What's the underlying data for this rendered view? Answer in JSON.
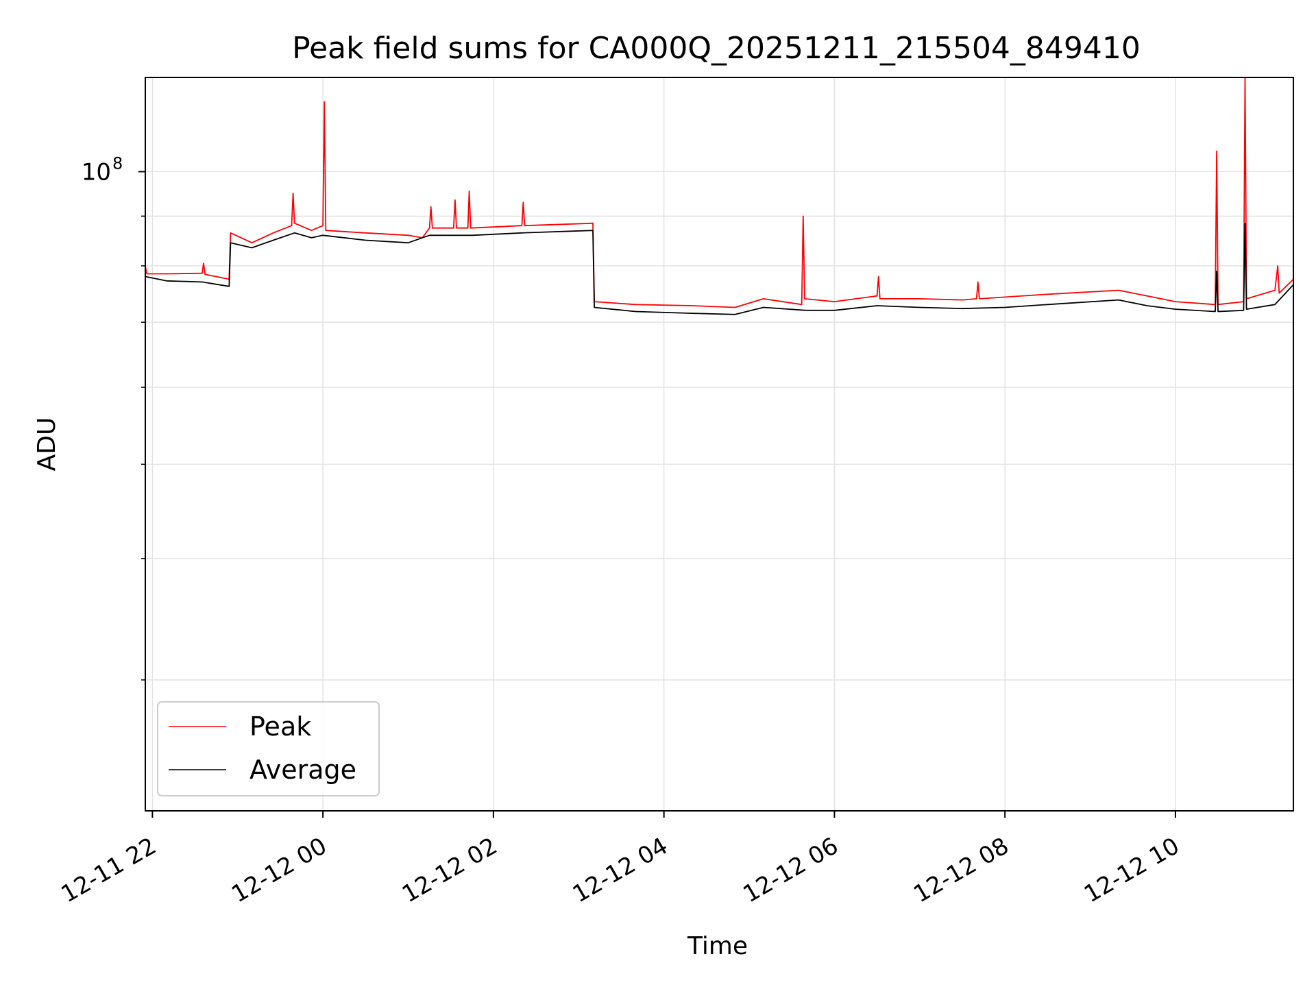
{
  "chart_data": {
    "type": "line",
    "title": "Peak field sums for CA000Q_20251211_215504_849410",
    "xlabel": "Time",
    "ylabel": "ADU",
    "y_scale": "log",
    "ylim": [
      22000000,
      125000000
    ],
    "xlim": [
      "2025-12-11 21:55",
      "2025-12-12 11:23"
    ],
    "grid": true,
    "legend_position": "lower-left",
    "x_ticks": [
      {
        "t": "2025-12-11 22:00",
        "label": "12-11 22"
      },
      {
        "t": "2025-12-12 00:00",
        "label": "12-12 00"
      },
      {
        "t": "2025-12-12 02:00",
        "label": "12-12 02"
      },
      {
        "t": "2025-12-12 04:00",
        "label": "12-12 04"
      },
      {
        "t": "2025-12-12 06:00",
        "label": "12-12 06"
      },
      {
        "t": "2025-12-12 08:00",
        "label": "12-12 08"
      },
      {
        "t": "2025-12-12 10:00",
        "label": "12-12 10"
      }
    ],
    "y_major_ticks": [
      {
        "value": 100000000,
        "base": "10",
        "exp": "8"
      }
    ],
    "y_minor_ticks": [
      30000000,
      40000000,
      50000000,
      60000000,
      70000000,
      80000000,
      90000000
    ],
    "series": [
      {
        "name": "Peak",
        "color": "#ff0000",
        "points": [
          [
            "2025-12-11 21:55",
            80000000
          ],
          [
            "2025-12-11 21:56",
            78500000
          ],
          [
            "2025-12-11 22:10",
            78500000
          ],
          [
            "2025-12-11 22:35",
            78600000
          ],
          [
            "2025-12-11 22:36",
            80500000
          ],
          [
            "2025-12-11 22:37",
            78400000
          ],
          [
            "2025-12-11 22:54",
            77500000
          ],
          [
            "2025-12-11 22:55",
            86500000
          ],
          [
            "2025-12-11 23:10",
            84500000
          ],
          [
            "2025-12-11 23:25",
            86500000
          ],
          [
            "2025-12-11 23:38",
            88000000
          ],
          [
            "2025-12-11 23:39",
            95000000
          ],
          [
            "2025-12-11 23:40",
            88500000
          ],
          [
            "2025-12-11 23:52",
            87000000
          ],
          [
            "2025-12-12 00:00",
            88000000
          ],
          [
            "2025-12-12 00:01",
            118000000
          ],
          [
            "2025-12-12 00:02",
            87000000
          ],
          [
            "2025-12-12 00:30",
            86500000
          ],
          [
            "2025-12-12 01:00",
            86000000
          ],
          [
            "2025-12-12 01:10",
            85500000
          ],
          [
            "2025-12-12 01:15",
            87500000
          ],
          [
            "2025-12-12 01:16",
            92000000
          ],
          [
            "2025-12-12 01:17",
            87500000
          ],
          [
            "2025-12-12 01:32",
            87500000
          ],
          [
            "2025-12-12 01:33",
            93500000
          ],
          [
            "2025-12-12 01:34",
            87500000
          ],
          [
            "2025-12-12 01:42",
            87500000
          ],
          [
            "2025-12-12 01:43",
            95500000
          ],
          [
            "2025-12-12 01:44",
            87500000
          ],
          [
            "2025-12-12 02:20",
            88000000
          ],
          [
            "2025-12-12 02:21",
            93000000
          ],
          [
            "2025-12-12 02:22",
            88000000
          ],
          [
            "2025-12-12 03:10",
            88500000
          ],
          [
            "2025-12-12 03:11",
            73500000
          ],
          [
            "2025-12-12 03:40",
            73000000
          ],
          [
            "2025-12-12 04:20",
            72800000
          ],
          [
            "2025-12-12 04:50",
            72500000
          ],
          [
            "2025-12-12 05:10",
            74000000
          ],
          [
            "2025-12-12 05:37",
            73000000
          ],
          [
            "2025-12-12 05:38",
            90000000
          ],
          [
            "2025-12-12 05:39",
            74000000
          ],
          [
            "2025-12-12 06:00",
            73500000
          ],
          [
            "2025-12-12 06:30",
            74500000
          ],
          [
            "2025-12-12 06:31",
            78000000
          ],
          [
            "2025-12-12 06:32",
            74000000
          ],
          [
            "2025-12-12 07:00",
            74000000
          ],
          [
            "2025-12-12 07:30",
            73800000
          ],
          [
            "2025-12-12 07:40",
            74000000
          ],
          [
            "2025-12-12 07:41",
            77000000
          ],
          [
            "2025-12-12 07:42",
            74000000
          ],
          [
            "2025-12-12 08:30",
            74800000
          ],
          [
            "2025-12-12 09:20",
            75500000
          ],
          [
            "2025-12-12 09:40",
            74500000
          ],
          [
            "2025-12-12 10:00",
            73500000
          ],
          [
            "2025-12-12 10:28",
            73000000
          ],
          [
            "2025-12-12 10:29",
            105000000
          ],
          [
            "2025-12-12 10:30",
            73000000
          ],
          [
            "2025-12-12 10:48",
            73500000
          ],
          [
            "2025-12-12 10:49",
            125000000
          ],
          [
            "2025-12-12 10:50",
            74000000
          ],
          [
            "2025-12-12 11:10",
            75500000
          ],
          [
            "2025-12-12 11:12",
            80000000
          ],
          [
            "2025-12-12 11:13",
            75000000
          ],
          [
            "2025-12-12 11:23",
            77500000
          ]
        ]
      },
      {
        "name": "Average",
        "color": "#000000",
        "points": [
          [
            "2025-12-11 21:55",
            78000000
          ],
          [
            "2025-12-11 22:10",
            77200000
          ],
          [
            "2025-12-11 22:35",
            77000000
          ],
          [
            "2025-12-11 22:54",
            76200000
          ],
          [
            "2025-12-11 22:55",
            84500000
          ],
          [
            "2025-12-11 23:10",
            83500000
          ],
          [
            "2025-12-11 23:25",
            85000000
          ],
          [
            "2025-12-11 23:40",
            86500000
          ],
          [
            "2025-12-11 23:52",
            85500000
          ],
          [
            "2025-12-12 00:00",
            86000000
          ],
          [
            "2025-12-12 00:30",
            85000000
          ],
          [
            "2025-12-12 01:00",
            84500000
          ],
          [
            "2025-12-12 01:15",
            86000000
          ],
          [
            "2025-12-12 01:45",
            86000000
          ],
          [
            "2025-12-12 02:20",
            86500000
          ],
          [
            "2025-12-12 03:10",
            87000000
          ],
          [
            "2025-12-12 03:11",
            72500000
          ],
          [
            "2025-12-12 03:40",
            71800000
          ],
          [
            "2025-12-12 04:20",
            71500000
          ],
          [
            "2025-12-12 04:50",
            71300000
          ],
          [
            "2025-12-12 05:10",
            72500000
          ],
          [
            "2025-12-12 05:40",
            72000000
          ],
          [
            "2025-12-12 06:00",
            72000000
          ],
          [
            "2025-12-12 06:30",
            72800000
          ],
          [
            "2025-12-12 07:00",
            72500000
          ],
          [
            "2025-12-12 07:30",
            72300000
          ],
          [
            "2025-12-12 08:00",
            72500000
          ],
          [
            "2025-12-12 08:30",
            73000000
          ],
          [
            "2025-12-12 09:20",
            73800000
          ],
          [
            "2025-12-12 09:40",
            72800000
          ],
          [
            "2025-12-12 10:00",
            72200000
          ],
          [
            "2025-12-12 10:28",
            71800000
          ],
          [
            "2025-12-12 10:29",
            79000000
          ],
          [
            "2025-12-12 10:30",
            71800000
          ],
          [
            "2025-12-12 10:48",
            72000000
          ],
          [
            "2025-12-12 10:49",
            88500000
          ],
          [
            "2025-12-12 10:50",
            72200000
          ],
          [
            "2025-12-12 11:10",
            73000000
          ],
          [
            "2025-12-12 11:23",
            76500000
          ]
        ]
      }
    ]
  }
}
